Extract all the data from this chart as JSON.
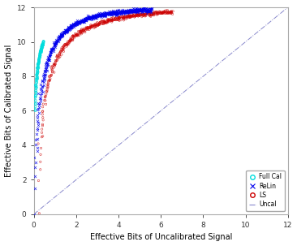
{
  "title": "",
  "xlabel": "Effective Bits of Uncalibrated Signal",
  "ylabel": "Effective Bits of Calibrated Signal",
  "xlim": [
    0,
    12
  ],
  "ylim": [
    0,
    12
  ],
  "xticks": [
    0,
    2,
    4,
    6,
    8,
    10,
    12
  ],
  "yticks": [
    0,
    2,
    4,
    6,
    8,
    10,
    12
  ],
  "full_cal_color": "#00dddd",
  "relin_color": "#0000ee",
  "ls_color": "#cc0000",
  "uncal_color": "#8888cc",
  "background_color": "#ffffff"
}
